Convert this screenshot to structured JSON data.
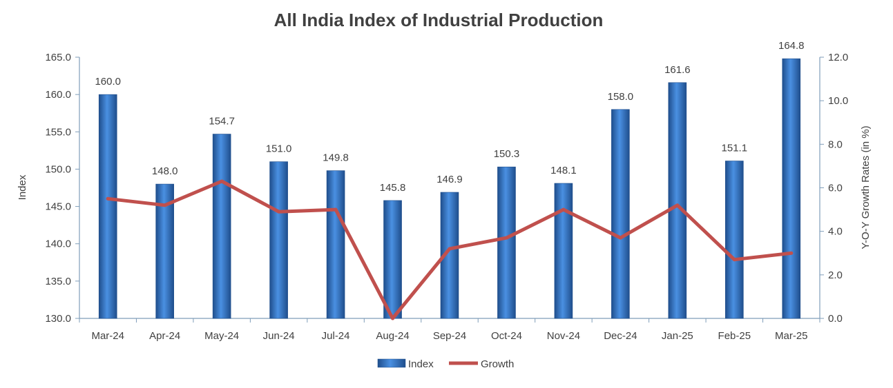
{
  "chart_data": {
    "type": "bar",
    "title": "All India Index of Industrial Production",
    "xlabel": "",
    "ylabel": "Index",
    "y2label": "Y-O-Y Growth Rates (in %)",
    "categories": [
      "Mar-24",
      "Apr-24",
      "May-24",
      "Jun-24",
      "Jul-24",
      "Aug-24",
      "Sep-24",
      "Oct-24",
      "Nov-24",
      "Dec-24",
      "Jan-25",
      "Feb-25",
      "Mar-25"
    ],
    "ylim": [
      130,
      165
    ],
    "yticks": [
      "130.0",
      "135.0",
      "140.0",
      "145.0",
      "150.0",
      "155.0",
      "160.0",
      "165.0"
    ],
    "y2lim": [
      0,
      12
    ],
    "y2ticks": [
      "0.0",
      "2.0",
      "4.0",
      "6.0",
      "8.0",
      "10.0",
      "12.0"
    ],
    "series": [
      {
        "name": "Index",
        "type": "bar",
        "axis": "left",
        "values": [
          160.0,
          148.0,
          154.7,
          151.0,
          149.8,
          145.8,
          146.9,
          150.3,
          148.1,
          158.0,
          161.6,
          151.1,
          164.8
        ],
        "labels": [
          "160.0",
          "148.0",
          "154.7",
          "151.0",
          "149.8",
          "145.8",
          "146.9",
          "150.3",
          "148.1",
          "158.0",
          "161.6",
          "151.1",
          "164.8"
        ],
        "color": "#2E75C8"
      },
      {
        "name": "Growth",
        "type": "line",
        "axis": "right",
        "values": [
          5.5,
          5.2,
          6.3,
          4.9,
          5.0,
          0.0,
          3.2,
          3.7,
          5.0,
          3.7,
          5.2,
          2.7,
          3.0
        ],
        "color": "#C0504D"
      }
    ],
    "legend": "bottom",
    "grid": false
  }
}
